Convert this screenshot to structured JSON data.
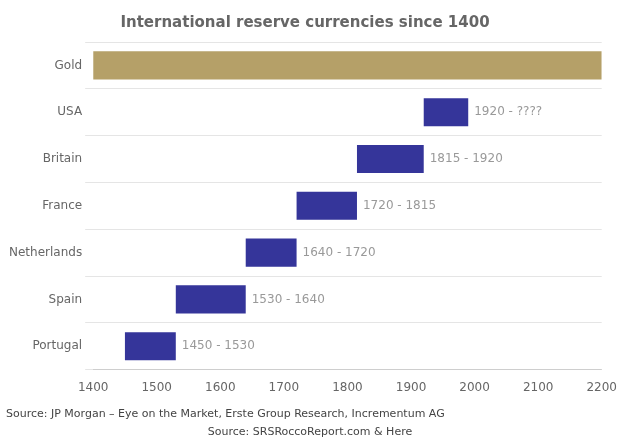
{
  "chart_data": {
    "type": "bar",
    "orientation": "horizontal",
    "title": "International reserve currencies since 1400",
    "categories": [
      "Gold",
      "USA",
      "Britain",
      "France",
      "Netherlands",
      "Spain",
      "Portugal"
    ],
    "values": [
      [
        1400,
        2200
      ],
      [
        1920,
        1990
      ],
      [
        1815,
        1920
      ],
      [
        1720,
        1815
      ],
      [
        1640,
        1720
      ],
      [
        1530,
        1640
      ],
      [
        1450,
        1530
      ]
    ],
    "colors": [
      "#b5a068",
      "#35359a",
      "#35359a",
      "#35359a",
      "#35359a",
      "#35359a",
      "#35359a"
    ],
    "data_labels": true,
    "value_labels": [
      null,
      "1920 - ????",
      "1815 - 1920",
      "1720 - 1815",
      "1640 - 1720",
      "1530 - 1640",
      "1450 - 1530"
    ],
    "xlim": [
      1400,
      2200
    ],
    "xticks": [
      1400,
      1500,
      1600,
      1700,
      1800,
      1900,
      2000,
      2100,
      2200
    ],
    "grid": true,
    "annotations": [
      "Source: JP Morgan – Eye on the Market, Erste Group Research, Incrementum AG",
      "Source: ",
      "SRSRoccoReport.com & Here"
    ]
  }
}
